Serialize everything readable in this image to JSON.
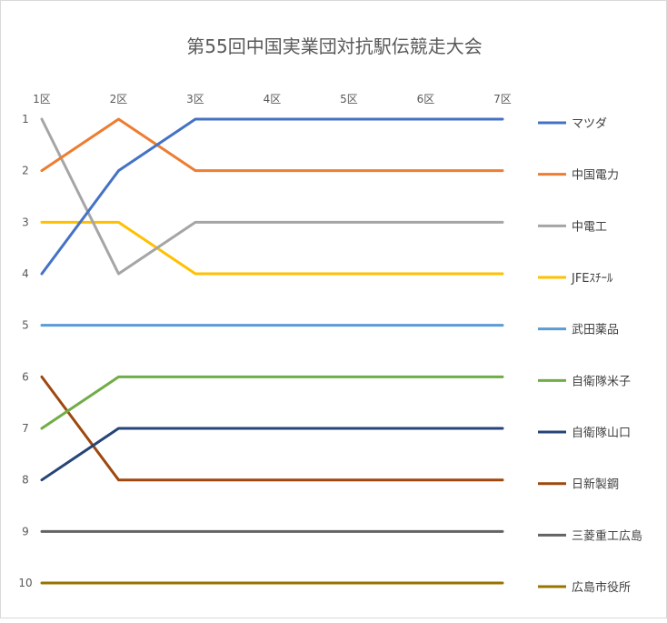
{
  "chart_data": {
    "type": "line",
    "title": "第55回中国実業団対抗駅伝競走大会",
    "xlabel": "",
    "ylabel": "",
    "categories": [
      "1区",
      "2区",
      "3区",
      "4区",
      "5区",
      "6区",
      "7区"
    ],
    "y_ticks": [
      "1",
      "2",
      "3",
      "4",
      "5",
      "6",
      "7",
      "8",
      "9",
      "10"
    ],
    "ylim": [
      1,
      10
    ],
    "y_reversed": true,
    "x_axis_position": "top",
    "legend_position": "right",
    "grid": false,
    "series": [
      {
        "name": "マツダ",
        "color": "#4472C4",
        "values": [
          4,
          2,
          1,
          1,
          1,
          1,
          1
        ]
      },
      {
        "name": "中国電力",
        "color": "#ED7D31",
        "values": [
          2,
          1,
          2,
          2,
          2,
          2,
          2
        ]
      },
      {
        "name": "中電工",
        "color": "#A5A5A5",
        "values": [
          1,
          4,
          3,
          3,
          3,
          3,
          3
        ]
      },
      {
        "name": "JFEｽﾁｰﾙ",
        "color": "#FFC000",
        "values": [
          3,
          3,
          4,
          4,
          4,
          4,
          4
        ]
      },
      {
        "name": "武田薬品",
        "color": "#5B9BD5",
        "values": [
          5,
          5,
          5,
          5,
          5,
          5,
          5
        ]
      },
      {
        "name": "自衛隊米子",
        "color": "#70AD47",
        "values": [
          7,
          6,
          6,
          6,
          6,
          6,
          6
        ]
      },
      {
        "name": "自衛隊山口",
        "color": "#264478",
        "values": [
          8,
          7,
          7,
          7,
          7,
          7,
          7
        ]
      },
      {
        "name": "日新製鋼",
        "color": "#9E480E",
        "values": [
          6,
          8,
          8,
          8,
          8,
          8,
          8
        ]
      },
      {
        "name": "三菱重工広島",
        "color": "#636363",
        "values": [
          9,
          9,
          9,
          9,
          9,
          9,
          9
        ]
      },
      {
        "name": "広島市役所",
        "color": "#997300",
        "values": [
          10,
          10,
          10,
          10,
          10,
          10,
          10
        ]
      }
    ]
  }
}
